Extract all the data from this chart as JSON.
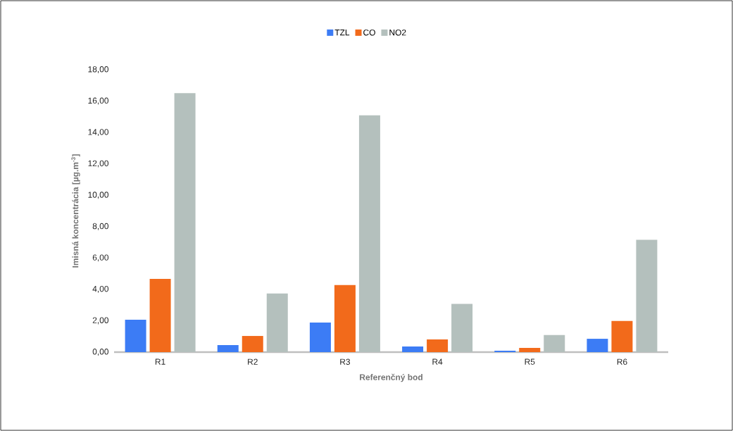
{
  "chart_data": {
    "type": "bar",
    "xlabel": "Referenčný bod",
    "ylabel": "Imisná koncentrácia [µg.m$^{-3}$]",
    "categories": [
      "R1",
      "R2",
      "R3",
      "R4",
      "R5",
      "R6"
    ],
    "series": [
      {
        "name": "TZL",
        "color": "#3c7cf5",
        "values": [
          2.07,
          0.45,
          1.89,
          0.36,
          0.09,
          0.85
        ]
      },
      {
        "name": "CO",
        "color": "#f26a1b",
        "values": [
          4.67,
          1.03,
          4.27,
          0.81,
          0.27,
          1.99
        ]
      },
      {
        "name": "NO2",
        "color": "#b4c0bd",
        "values": [
          16.51,
          3.74,
          15.09,
          3.07,
          1.09,
          7.16
        ]
      }
    ],
    "ylim": [
      0,
      18
    ],
    "yticks": [
      {
        "value": 0,
        "label": "0,00"
      },
      {
        "value": 2,
        "label": "2,00"
      },
      {
        "value": 4,
        "label": "4,00"
      },
      {
        "value": 6,
        "label": "6,00"
      },
      {
        "value": 8,
        "label": "8,00"
      },
      {
        "value": 10,
        "label": "10,00"
      },
      {
        "value": 12,
        "label": "12,00"
      },
      {
        "value": 14,
        "label": "14,00"
      },
      {
        "value": 16,
        "label": "16,00"
      },
      {
        "value": 18,
        "label": "18,00"
      }
    ],
    "legend": "top"
  }
}
